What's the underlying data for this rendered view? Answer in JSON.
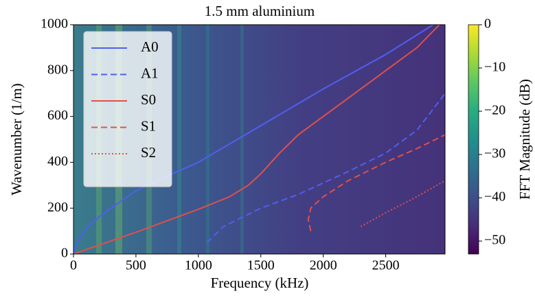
{
  "chart_data": {
    "type": "line",
    "title": "1.5 mm aluminium",
    "xlabel": "Frequency (kHz)",
    "ylabel": "Wavenumber (1/m)",
    "xlim": [
      0,
      2975
    ],
    "ylim": [
      0,
      1000
    ],
    "xticks": [
      0,
      500,
      1000,
      1500,
      2000,
      2500
    ],
    "yticks": [
      0,
      200,
      400,
      600,
      800,
      1000
    ],
    "legend": "upper left",
    "series": [
      {
        "name": "A0",
        "color": "#4f5ff0",
        "linestyle": "solid",
        "x": [
          0,
          25,
          100,
          200,
          300,
          500,
          750,
          1000,
          1500,
          2000,
          2500,
          2880
        ],
        "values": [
          0,
          50,
          110,
          160,
          200,
          275,
          340,
          400,
          560,
          720,
          870,
          1000
        ]
      },
      {
        "name": "A1",
        "color": "#4f5ff0",
        "linestyle": "dashed",
        "x": [
          1070,
          1200,
          1500,
          1800,
          2000,
          2200,
          2500,
          2750,
          2975
        ],
        "values": [
          50,
          120,
          200,
          260,
          310,
          360,
          440,
          540,
          700
        ]
      },
      {
        "name": "S0",
        "color": "#e0504a",
        "linestyle": "solid",
        "x": [
          0,
          500,
          1000,
          1250,
          1400,
          1500,
          1650,
          1800,
          2000,
          2250,
          2500,
          2750,
          2930
        ],
        "values": [
          0,
          95,
          195,
          250,
          300,
          350,
          440,
          520,
          600,
          700,
          800,
          900,
          1000
        ]
      },
      {
        "name": "S1",
        "color": "#e0504a",
        "linestyle": "dashed",
        "x": [
          1900,
          1880,
          1900,
          2000,
          2200,
          2500,
          2750,
          2975
        ],
        "values": [
          100,
          150,
          200,
          250,
          320,
          400,
          460,
          520
        ]
      },
      {
        "name": "S2",
        "color": "#e0504a",
        "linestyle": "dotted",
        "x": [
          2300,
          2500,
          2750,
          2975
        ],
        "values": [
          120,
          180,
          250,
          320
        ]
      }
    ],
    "colorbar": {
      "label": "FFT Magnitude (dB)",
      "colormap": "viridis",
      "clim": [
        -53,
        0
      ],
      "ticks": [
        {
          "value": -50,
          "label": "−50"
        },
        {
          "value": -40,
          "label": "−40"
        },
        {
          "value": -30,
          "label": "−30"
        },
        {
          "value": -20,
          "label": "−20"
        },
        {
          "value": -10,
          "label": "−10"
        },
        0
      ]
    }
  }
}
